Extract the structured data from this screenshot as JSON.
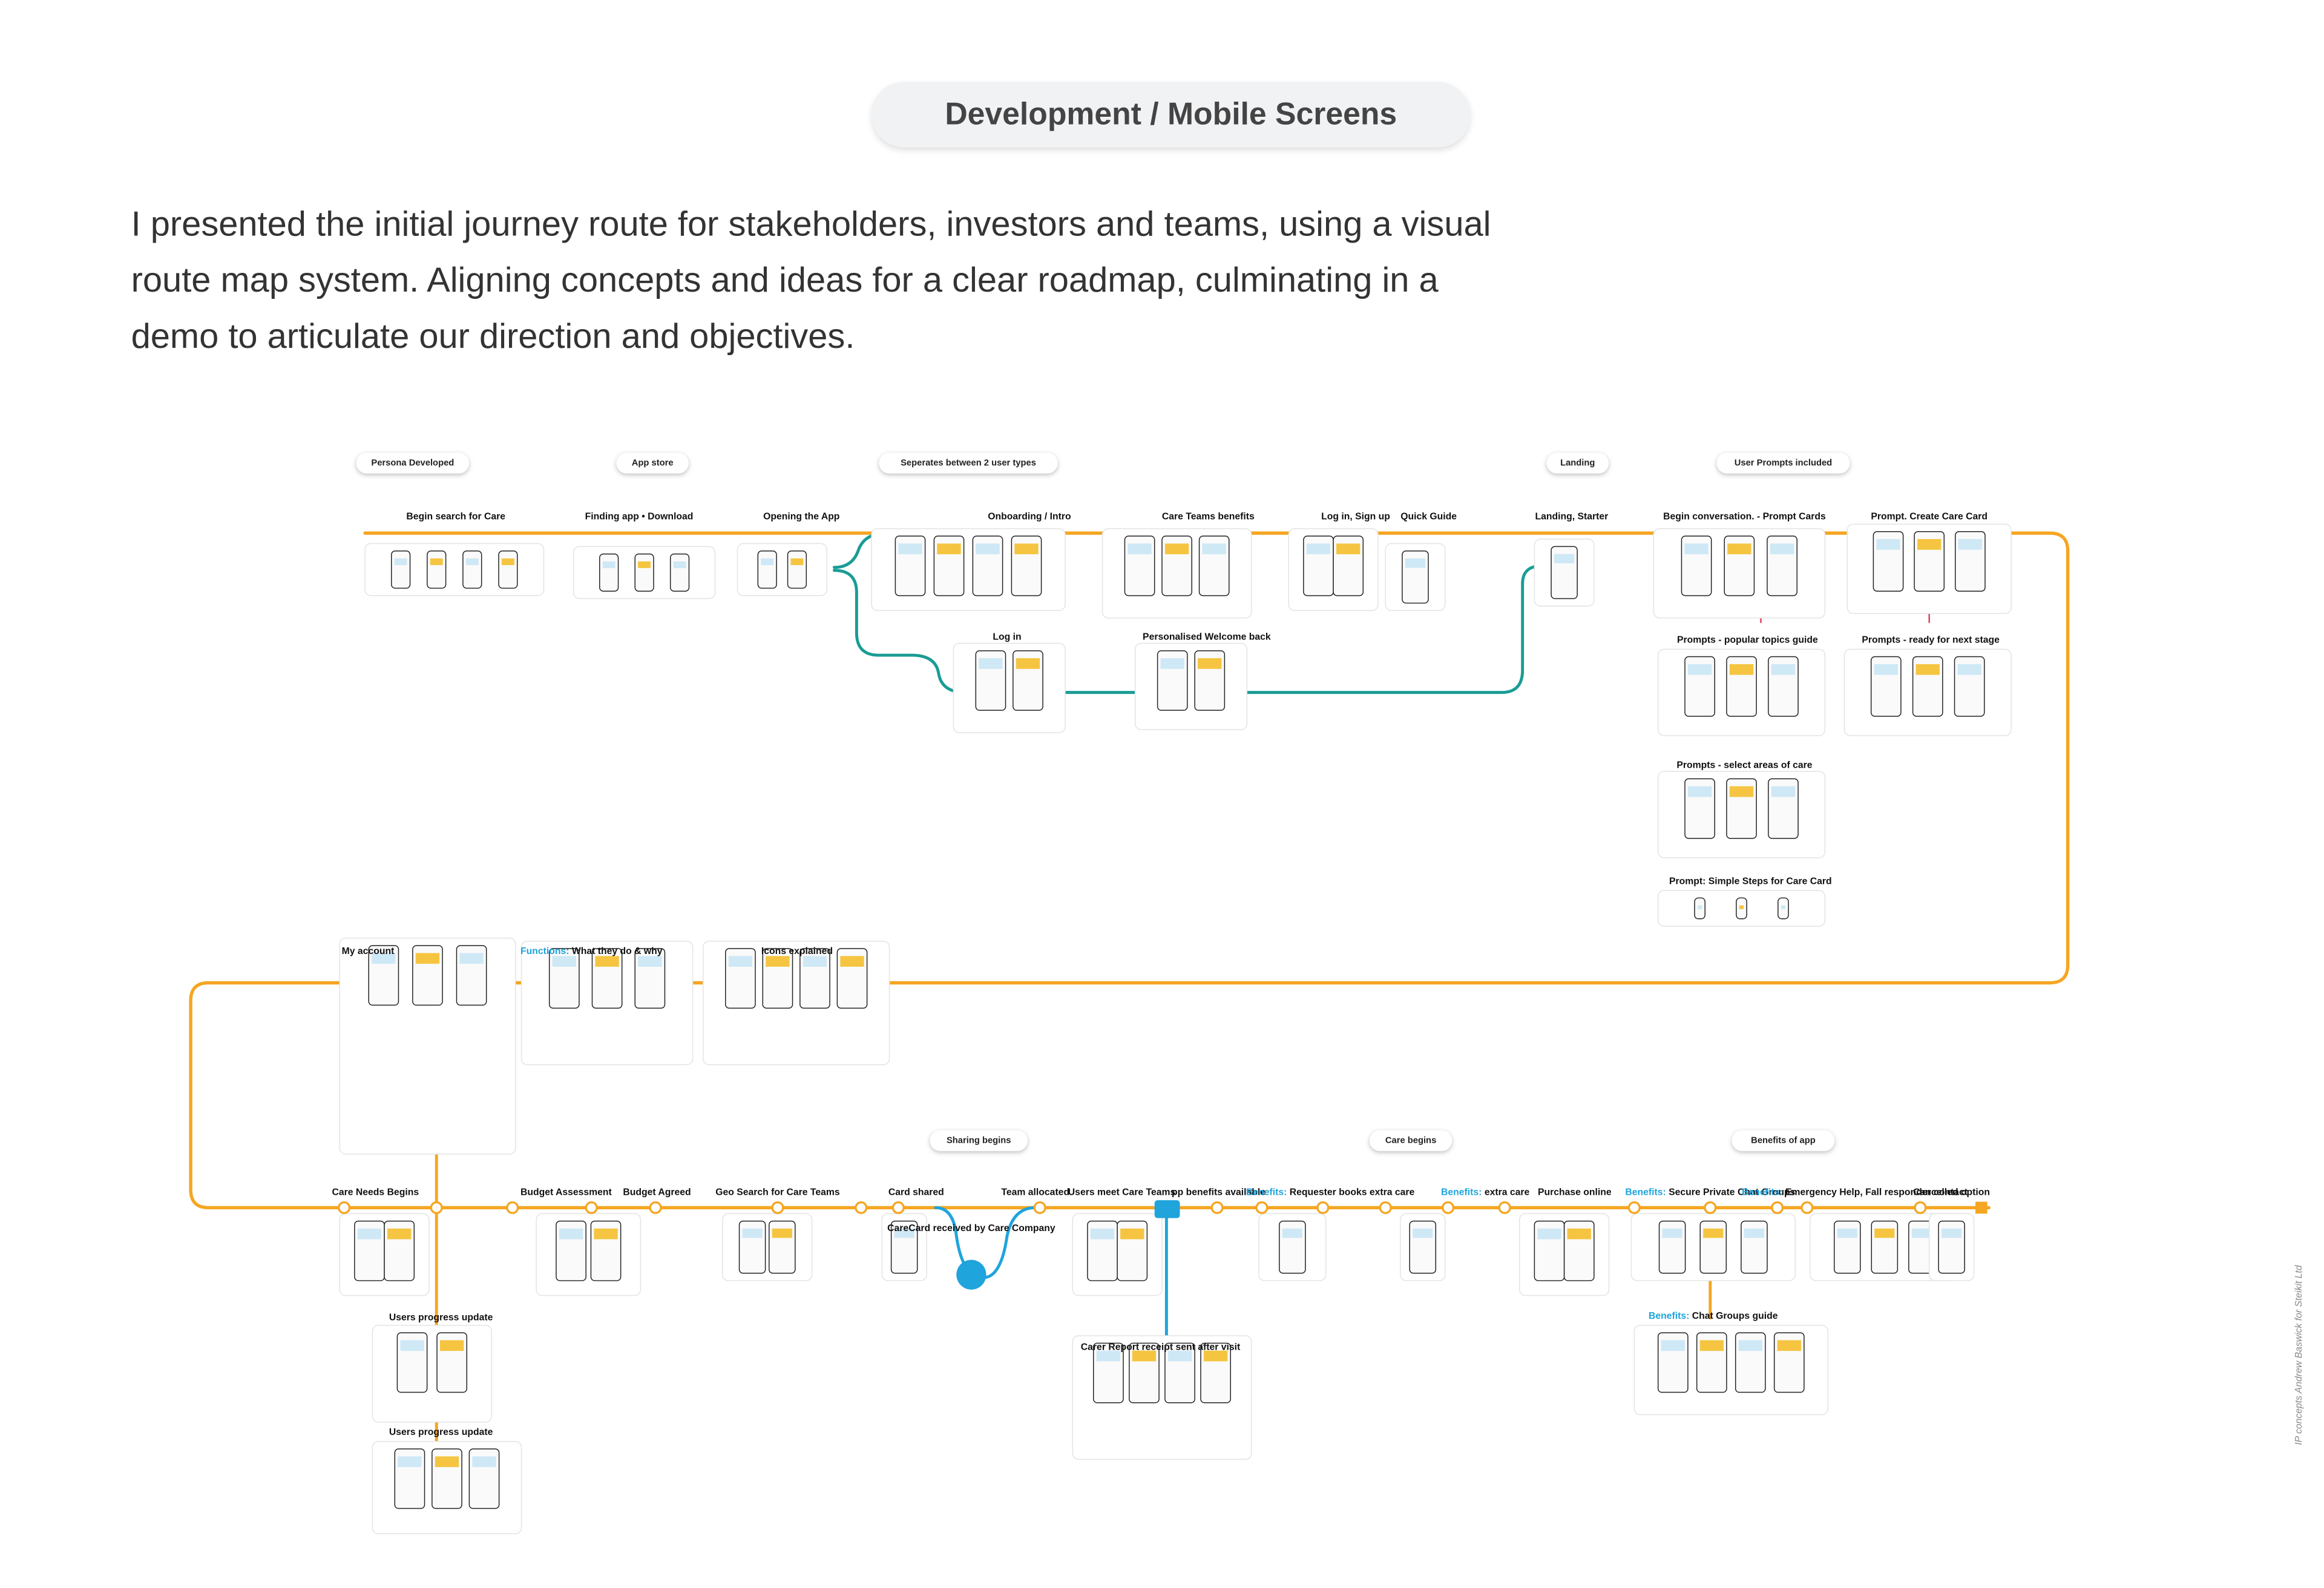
{
  "header": {
    "title": "Development / Mobile Screens"
  },
  "intro": {
    "lines": [
      "I presented the initial journey route for stakeholders, investors and teams, using a visual",
      "route map system. Aligning concepts and ideas for a clear roadmap, culminating in a",
      "demo to articulate our direction and objectives."
    ]
  },
  "route_map": {
    "top_pills": [
      "Persona Developed",
      "App store",
      "Seperates between 2 user types",
      "Landing",
      "User Prompts included"
    ],
    "top_headings": [
      "Begin search for Care",
      "Finding app • Download",
      "Opening the App",
      "Onboarding / Intro",
      "Care Teams benefits",
      "Log in, Sign up",
      "Quick Guide",
      "Landing, Starter",
      "Begin conversation. - Prompt Cards",
      "Prompt. Create Care Card"
    ],
    "second_headings": [
      "Log in",
      "Personalised Welcome back",
      "Prompts - popular topics guide",
      "Prompts - ready for next stage",
      "Prompts - select areas of care",
      "Prompt:  Simple Steps for Care Card"
    ],
    "middle_headings": [
      {
        "text": "My account"
      },
      {
        "prefix": "Functions:",
        "text": " What they do & why"
      },
      {
        "text": "Icons explained"
      }
    ],
    "bottom_pills": [
      "Sharing begins",
      "Care begins",
      "Benefits of app"
    ],
    "bottom_headings": [
      {
        "text": "Care Needs Begins"
      },
      {
        "text": "Budget Assessment"
      },
      {
        "text": "Budget Agreed"
      },
      {
        "text": "Geo Search for Care Teams"
      },
      {
        "text": "Card shared"
      },
      {
        "text": "Team allocated"
      },
      {
        "text": "Users meet Care Teams"
      },
      {
        "text": "pp benefits available"
      },
      {
        "prefix": "Benefits:",
        "text": " Requester books extra care"
      },
      {
        "prefix": "Benefits:",
        "text": " extra care"
      },
      {
        "text": "Purchase online"
      },
      {
        "prefix": "Benefits:",
        "text": " Secure Private Chat Groups"
      },
      {
        "prefix": "Benefits:",
        "text": " Emergency Help, Fall responder contact"
      },
      {
        "text": "Cancelled option"
      }
    ],
    "extra_headings": [
      {
        "text": "CareCard received by Care Company"
      },
      {
        "text": "Carer Report receipt sent after visit"
      },
      {
        "text": "Users progress update"
      },
      {
        "text": "Users progress update"
      },
      {
        "prefix": "Benefits:",
        "text": " Chat Groups guide"
      }
    ]
  },
  "credit": "IP concepts Andrew Baswick for Steikit Ltd"
}
